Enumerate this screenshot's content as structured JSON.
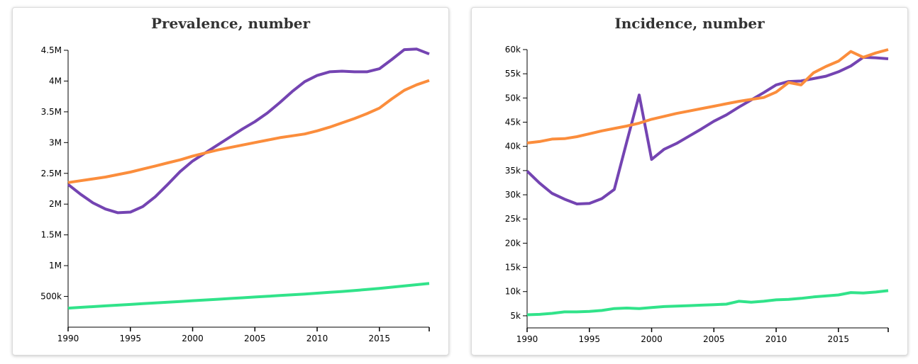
{
  "chart_data": [
    {
      "type": "line",
      "title": "Prevalence, number",
      "xlabel": "",
      "ylabel": "",
      "xlim": [
        1990,
        2019
      ],
      "ylim": [
        0,
        4500000
      ],
      "x_ticks": [
        {
          "value": 1990,
          "label": "1990"
        },
        {
          "value": 1995,
          "label": "1995"
        },
        {
          "value": 2000,
          "label": "2000"
        },
        {
          "value": 2005,
          "label": "2005"
        },
        {
          "value": 2010,
          "label": "2010"
        },
        {
          "value": 2015,
          "label": "2015"
        }
      ],
      "y_ticks": [
        {
          "value": 500000,
          "label": "500k"
        },
        {
          "value": 1000000,
          "label": "1M"
        },
        {
          "value": 1500000,
          "label": "1.5M"
        },
        {
          "value": 2000000,
          "label": "2M"
        },
        {
          "value": 2500000,
          "label": "2.5M"
        },
        {
          "value": 3000000,
          "label": "3M"
        },
        {
          "value": 3500000,
          "label": "3.5M"
        },
        {
          "value": 4000000,
          "label": "4M"
        },
        {
          "value": 4500000,
          "label": "4.5M"
        }
      ],
      "grid": false,
      "x": [
        1990,
        1991,
        1992,
        1993,
        1994,
        1995,
        1996,
        1997,
        1998,
        1999,
        2000,
        2001,
        2002,
        2003,
        2004,
        2005,
        2006,
        2007,
        2008,
        2009,
        2010,
        2011,
        2012,
        2013,
        2014,
        2015,
        2016,
        2017,
        2018,
        2019
      ],
      "series": [
        {
          "color": "#7444b2",
          "values": [
            2320000,
            2160000,
            2020000,
            1920000,
            1860000,
            1870000,
            1960000,
            2120000,
            2320000,
            2530000,
            2700000,
            2830000,
            2960000,
            3090000,
            3220000,
            3340000,
            3480000,
            3650000,
            3830000,
            3990000,
            4090000,
            4150000,
            4160000,
            4150000,
            4150000,
            4200000,
            4350000,
            4510000,
            4520000,
            4440000
          ]
        },
        {
          "color": "#fb8d3c",
          "values": [
            2350000,
            2380000,
            2410000,
            2440000,
            2480000,
            2520000,
            2570000,
            2620000,
            2670000,
            2720000,
            2780000,
            2830000,
            2880000,
            2920000,
            2960000,
            3000000,
            3040000,
            3080000,
            3110000,
            3140000,
            3190000,
            3250000,
            3320000,
            3390000,
            3470000,
            3560000,
            3710000,
            3850000,
            3940000,
            4010000
          ]
        },
        {
          "color": "#31e38a",
          "values": [
            310000,
            322000,
            334000,
            346000,
            358000,
            370000,
            382000,
            394000,
            406000,
            418000,
            430000,
            442000,
            454000,
            466000,
            478000,
            490000,
            502000,
            514000,
            526000,
            538000,
            552000,
            566000,
            580000,
            596000,
            612000,
            630000,
            650000,
            670000,
            690000,
            710000
          ]
        }
      ]
    },
    {
      "type": "line",
      "title": "Incidence, number",
      "xlabel": "",
      "ylabel": "",
      "xlim": [
        1990,
        2019
      ],
      "ylim": [
        2500,
        60000
      ],
      "x_ticks": [
        {
          "value": 1990,
          "label": "1990"
        },
        {
          "value": 1995,
          "label": "1995"
        },
        {
          "value": 2000,
          "label": "2000"
        },
        {
          "value": 2005,
          "label": "2005"
        },
        {
          "value": 2010,
          "label": "2010"
        },
        {
          "value": 2015,
          "label": "2015"
        }
      ],
      "y_ticks": [
        {
          "value": 5000,
          "label": "5k"
        },
        {
          "value": 10000,
          "label": "10k"
        },
        {
          "value": 15000,
          "label": "15k"
        },
        {
          "value": 20000,
          "label": "20k"
        },
        {
          "value": 25000,
          "label": "25k"
        },
        {
          "value": 30000,
          "label": "30k"
        },
        {
          "value": 35000,
          "label": "35k"
        },
        {
          "value": 40000,
          "label": "40k"
        },
        {
          "value": 45000,
          "label": "45k"
        },
        {
          "value": 50000,
          "label": "50k"
        },
        {
          "value": 55000,
          "label": "55k"
        },
        {
          "value": 60000,
          "label": "60k"
        }
      ],
      "grid": false,
      "x": [
        1990,
        1991,
        1992,
        1993,
        1994,
        1995,
        1996,
        1997,
        1998,
        1999,
        2000,
        2001,
        2002,
        2003,
        2004,
        2005,
        2006,
        2007,
        2008,
        2009,
        2010,
        2011,
        2012,
        2013,
        2014,
        2015,
        2016,
        2017,
        2018,
        2019
      ],
      "series": [
        {
          "color": "#7444b2",
          "values": [
            34900,
            32400,
            30300,
            29100,
            28100,
            28200,
            29200,
            31100,
            40900,
            50600,
            37300,
            39400,
            40600,
            42100,
            43600,
            45200,
            46500,
            48100,
            49600,
            51100,
            52700,
            53400,
            53500,
            54000,
            54500,
            55400,
            56600,
            58400,
            58300,
            58100
          ]
        },
        {
          "color": "#fb8d3c",
          "values": [
            40700,
            41000,
            41500,
            41600,
            42000,
            42600,
            43200,
            43700,
            44200,
            44800,
            45600,
            46200,
            46800,
            47300,
            47800,
            48300,
            48800,
            49300,
            49700,
            50100,
            51200,
            53200,
            52700,
            55200,
            56500,
            57600,
            59600,
            58400,
            59300,
            60000
          ]
        },
        {
          "color": "#31e38a",
          "values": [
            5200,
            5300,
            5500,
            5800,
            5800,
            5900,
            6100,
            6500,
            6600,
            6500,
            6700,
            6900,
            7000,
            7100,
            7200,
            7300,
            7400,
            8000,
            7800,
            8000,
            8300,
            8400,
            8600,
            8900,
            9100,
            9300,
            9800,
            9700,
            9900,
            10200
          ]
        }
      ]
    }
  ]
}
